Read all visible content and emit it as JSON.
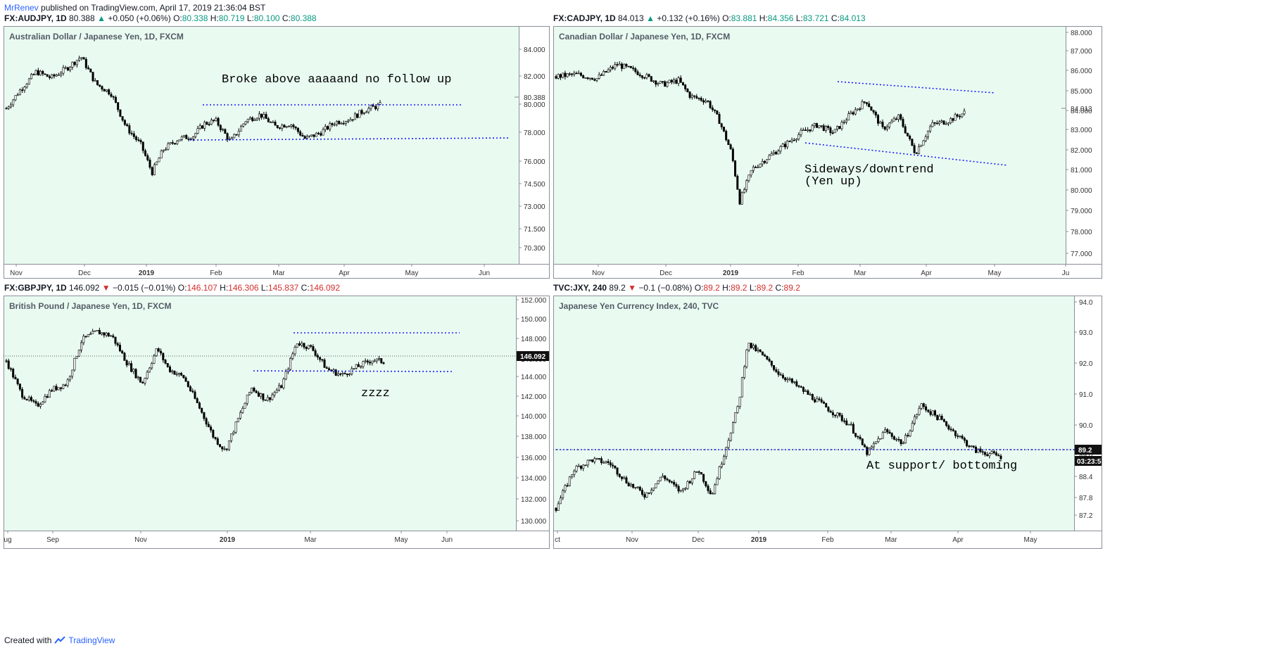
{
  "header": {
    "author": "MrRenev",
    "published": "published on TradingView.com, April 17, 2019 21:36:04 BST"
  },
  "footer": {
    "created": "Created with",
    "brand": "TradingView"
  },
  "colors": {
    "background": "#e9fbf1",
    "up_green": "#22aa22",
    "down_red": "#cc2222",
    "trendline": "#1a1aff",
    "text_green": "#089981"
  },
  "panels": [
    {
      "symbol": "FX:AUDJPY, 1D",
      "last": "80.388",
      "direction": "up",
      "change": "+0.050 (+0.06%)",
      "o_label": "O:",
      "o": "80.338",
      "h_label": "H:",
      "h": "80.719",
      "l_label": "L:",
      "l": "80.100",
      "c_label": "C:",
      "c": "80.388",
      "name": "Australian Dollar / Japanese Yen, 1D, FXCM",
      "annotation": "Broke above aaaaand no follow up",
      "price_tag": "80.388"
    },
    {
      "symbol": "FX:CADJPY, 1D",
      "last": "84.013",
      "direction": "up",
      "change": "+0.132 (+0.16%)",
      "o_label": "O:",
      "o": "83.881",
      "h_label": "H:",
      "h": "84.356",
      "l_label": "L:",
      "l": "83.721",
      "c_label": "C:",
      "c": "84.013",
      "name": "Canadian Dollar / Japanese Yen, 1D, FXCM",
      "annotation": "Sideways/downtrend",
      "annotation2": "(Yen up)",
      "price_tag": "84.013"
    },
    {
      "symbol": "FX:GBPJPY, 1D",
      "last": "146.092",
      "direction": "down",
      "change": "−0.015 (−0.01%)",
      "o_label": "O:",
      "o": "146.107",
      "h_label": "H:",
      "h": "146.306",
      "l_label": "L:",
      "l": "145.837",
      "c_label": "C:",
      "c": "146.092",
      "name": "British Pound / Japanese Yen, 1D, FXCM",
      "annotation": "zzzz",
      "price_tag": "146.092"
    },
    {
      "symbol": "TVC:JXY, 240",
      "last": "89.2",
      "direction": "down",
      "change": "−0.1 (−0.08%)",
      "o_label": "O:",
      "o": "89.2",
      "h_label": "H:",
      "h": "89.2",
      "l_label": "L:",
      "l": "89.2",
      "c_label": "C:",
      "c": "89.2",
      "name": "Japanese Yen Currency Index, 240, TVC",
      "annotation": "At support/ bottoming",
      "price_tag": "89.2",
      "countdown": "03:23:5"
    }
  ],
  "chart_data": [
    {
      "type": "candlestick",
      "title": "Australian Dollar / Japanese Yen, 1D, FXCM",
      "x_ticks": [
        "Nov",
        "Dec",
        "2019",
        "Feb",
        "Mar",
        "Apr",
        "May",
        "Jun"
      ],
      "y_ticks": [
        "84.000",
        "82.000",
        "80.000",
        "78.000",
        "76.000",
        "74.500",
        "73.000",
        "71.500",
        "70.300"
      ],
      "last_price": 80.388,
      "path": [
        [
          0,
          80.2
        ],
        [
          0.04,
          81.5
        ],
        [
          0.08,
          82.6
        ],
        [
          0.12,
          82.2
        ],
        [
          0.16,
          82.8
        ],
        [
          0.2,
          83.6
        ],
        [
          0.24,
          81.8
        ],
        [
          0.28,
          81.2
        ],
        [
          0.32,
          79.0
        ],
        [
          0.36,
          77.8
        ],
        [
          0.39,
          76.0
        ],
        [
          0.42,
          77.5
        ],
        [
          0.46,
          78.2
        ],
        [
          0.5,
          78.4
        ],
        [
          0.53,
          79.2
        ],
        [
          0.56,
          79.4
        ],
        [
          0.6,
          78.0
        ],
        [
          0.64,
          79.4
        ],
        [
          0.68,
          79.8
        ],
        [
          0.72,
          79.0
        ],
        [
          0.76,
          79.2
        ],
        [
          0.8,
          78.2
        ],
        [
          0.84,
          78.6
        ],
        [
          0.88,
          79.3
        ],
        [
          0.92,
          79.5
        ],
        [
          0.96,
          80.1
        ],
        [
          1.0,
          80.4
        ]
      ],
      "trendlines": [
        {
          "from": [
            "Jan",
            80.0
          ],
          "to": [
            "Jun",
            80.0
          ]
        },
        {
          "from": [
            "Jan",
            77.6
          ],
          "to": [
            "Jun",
            77.9
          ]
        }
      ]
    },
    {
      "type": "candlestick",
      "title": "Canadian Dollar / Japanese Yen, 1D, FXCM",
      "x_ticks": [
        "Nov",
        "Dec",
        "2019",
        "Feb",
        "Mar",
        "Apr",
        "May",
        "Ju"
      ],
      "y_ticks": [
        "88.000",
        "87.000",
        "86.000",
        "85.000",
        "84.000",
        "83.000",
        "82.000",
        "81.000",
        "80.000",
        "79.000",
        "78.000",
        "77.000"
      ],
      "last_price": 84.013,
      "path": [
        [
          0,
          85.8
        ],
        [
          0.05,
          85.9
        ],
        [
          0.1,
          85.7
        ],
        [
          0.15,
          86.4
        ],
        [
          0.2,
          86.0
        ],
        [
          0.26,
          85.4
        ],
        [
          0.3,
          85.6
        ],
        [
          0.33,
          84.8
        ],
        [
          0.37,
          84.6
        ],
        [
          0.4,
          83.6
        ],
        [
          0.43,
          82.0
        ],
        [
          0.45,
          79.6
        ],
        [
          0.48,
          81.2
        ],
        [
          0.52,
          81.8
        ],
        [
          0.56,
          82.4
        ],
        [
          0.6,
          83.0
        ],
        [
          0.64,
          83.4
        ],
        [
          0.68,
          83.0
        ],
        [
          0.72,
          83.9
        ],
        [
          0.76,
          84.6
        ],
        [
          0.8,
          83.2
        ],
        [
          0.84,
          83.8
        ],
        [
          0.88,
          82.0
        ],
        [
          0.92,
          83.4
        ],
        [
          0.96,
          83.6
        ],
        [
          1.0,
          84.0
        ]
      ],
      "trendlines": [
        {
          "from": [
            "Feb",
            85.5
          ],
          "to": [
            "May",
            84.9
          ]
        },
        {
          "from": [
            "Feb",
            82.4
          ],
          "to": [
            "May",
            81.2
          ]
        }
      ]
    },
    {
      "type": "candlestick",
      "title": "British Pound / Japanese Yen, 1D, FXCM",
      "x_ticks": [
        "ug",
        "Sep",
        "Nov",
        "2019",
        "Mar",
        "May",
        "Jun"
      ],
      "y_ticks": [
        "152.000",
        "150.000",
        "148.000",
        "146.000",
        "144.000",
        "142.000",
        "140.000",
        "138.000",
        "136.000",
        "134.000",
        "132.000",
        "130.000"
      ],
      "last_price": 146.092,
      "path": [
        [
          0,
          146.2
        ],
        [
          0.04,
          143.0
        ],
        [
          0.08,
          141.8
        ],
        [
          0.12,
          143.4
        ],
        [
          0.16,
          144.0
        ],
        [
          0.2,
          148.2
        ],
        [
          0.24,
          149.0
        ],
        [
          0.28,
          148.6
        ],
        [
          0.32,
          146.0
        ],
        [
          0.36,
          144.0
        ],
        [
          0.4,
          147.4
        ],
        [
          0.43,
          145.4
        ],
        [
          0.47,
          144.6
        ],
        [
          0.51,
          141.8
        ],
        [
          0.55,
          138.8
        ],
        [
          0.58,
          137.5
        ],
        [
          0.61,
          140.2
        ],
        [
          0.65,
          143.6
        ],
        [
          0.69,
          142.4
        ],
        [
          0.73,
          143.8
        ],
        [
          0.77,
          148.0
        ],
        [
          0.81,
          147.4
        ],
        [
          0.85,
          145.4
        ],
        [
          0.89,
          144.8
        ],
        [
          0.93,
          145.6
        ],
        [
          0.97,
          146.3
        ],
        [
          1.0,
          146.1
        ]
      ],
      "trendlines": [
        {
          "from": [
            "Mar",
            148.4
          ],
          "to": [
            "May",
            148.6
          ]
        },
        {
          "from": [
            "Feb",
            144.6
          ],
          "to": [
            "May",
            144.4
          ]
        }
      ]
    },
    {
      "type": "candlestick",
      "title": "Japanese Yen Currency Index, 240, TVC",
      "x_ticks": [
        "ct",
        "Nov",
        "Dec",
        "2019",
        "Feb",
        "Mar",
        "Apr",
        "May"
      ],
      "y_ticks": [
        "94.0",
        "93.0",
        "92.0",
        "91.0",
        "90.0",
        "89.0",
        "88.4",
        "87.8",
        "87.2"
      ],
      "last_price": 89.2,
      "path": [
        [
          0,
          87.6
        ],
        [
          0.04,
          88.8
        ],
        [
          0.08,
          89.1
        ],
        [
          0.12,
          89.0
        ],
        [
          0.16,
          88.4
        ],
        [
          0.2,
          88.0
        ],
        [
          0.24,
          88.6
        ],
        [
          0.28,
          88.1
        ],
        [
          0.32,
          88.8
        ],
        [
          0.35,
          88.0
        ],
        [
          0.38,
          89.4
        ],
        [
          0.41,
          90.8
        ],
        [
          0.43,
          92.7
        ],
        [
          0.46,
          92.4
        ],
        [
          0.5,
          91.8
        ],
        [
          0.54,
          91.4
        ],
        [
          0.58,
          91.0
        ],
        [
          0.62,
          90.6
        ],
        [
          0.66,
          90.2
        ],
        [
          0.7,
          89.3
        ],
        [
          0.74,
          90.0
        ],
        [
          0.78,
          89.6
        ],
        [
          0.82,
          90.8
        ],
        [
          0.86,
          90.4
        ],
        [
          0.9,
          89.9
        ],
        [
          0.94,
          89.4
        ],
        [
          1.0,
          89.2
        ]
      ],
      "trendlines": [
        {
          "from": [
            "Oct",
            89.2
          ],
          "to": [
            "May",
            89.2
          ]
        }
      ]
    }
  ]
}
